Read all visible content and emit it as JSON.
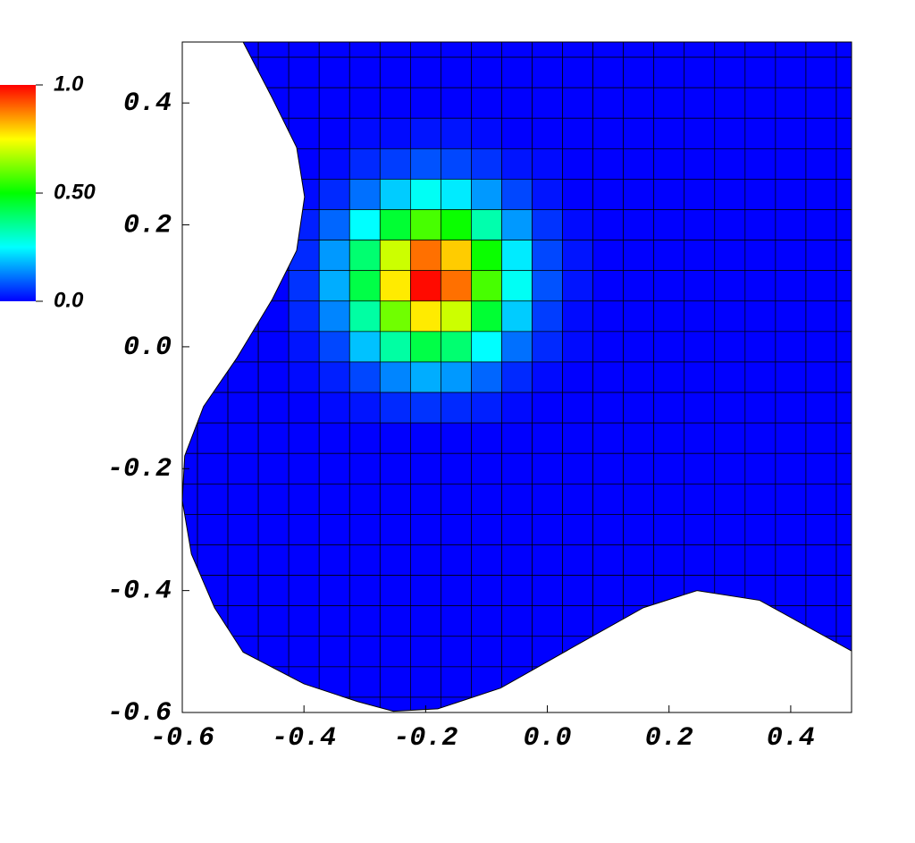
{
  "chart_data": {
    "type": "mesh",
    "x": [
      -0.6,
      -0.55,
      -0.5,
      -0.45,
      -0.4,
      -0.35,
      -0.3,
      -0.25,
      -0.2,
      -0.15,
      -0.1,
      -0.05,
      0,
      0.05,
      0.1,
      0.15,
      0.2,
      0.25,
      0.3,
      0.35,
      0.4,
      0.45,
      0.5
    ],
    "y": [
      0.5,
      0.45,
      0.4,
      0.35,
      0.3,
      0.25,
      0.2,
      0.15,
      0.1,
      0.05,
      0,
      -0.05,
      -0.1,
      -0.15,
      -0.2,
      -0.25,
      -0.3,
      -0.35,
      -0.4,
      -0.45,
      -0.5,
      -0.55,
      -0.6
    ],
    "z": [
      [
        0,
        0,
        0,
        0,
        0,
        0,
        0,
        0,
        0,
        0,
        0,
        0,
        0,
        0,
        0,
        0,
        0,
        0,
        0,
        0,
        0,
        0,
        0
      ],
      [
        0,
        0,
        0,
        0,
        0,
        0,
        0,
        0,
        0,
        0,
        0,
        0,
        0,
        0,
        0,
        0,
        0,
        0,
        0,
        0,
        0,
        0,
        0
      ],
      [
        0,
        0,
        0,
        0,
        0,
        0,
        0,
        0,
        0,
        0,
        0,
        0,
        0,
        0,
        0,
        0,
        0,
        0,
        0,
        0,
        0,
        0,
        0
      ],
      [
        0,
        0,
        0,
        0,
        0,
        0,
        0.01,
        0.01,
        0.02,
        0.02,
        0.01,
        0,
        0,
        0,
        0,
        0,
        0,
        0,
        0,
        0,
        0,
        0,
        0
      ],
      [
        0,
        0,
        0,
        0,
        0,
        0.01,
        0.04,
        0.06,
        0.08,
        0.07,
        0.05,
        0.02,
        0.01,
        0,
        0,
        0,
        0,
        0,
        0,
        0,
        0,
        0,
        0
      ],
      [
        0,
        0,
        0,
        0,
        0.01,
        0.04,
        0.11,
        0.2,
        0.26,
        0.23,
        0.15,
        0.07,
        0.02,
        0,
        0,
        0,
        0,
        0,
        0,
        0,
        0,
        0,
        0
      ],
      [
        0,
        0,
        0,
        0,
        0.03,
        0.1,
        0.25,
        0.45,
        0.57,
        0.51,
        0.33,
        0.15,
        0.05,
        0.01,
        0,
        0,
        0,
        0,
        0,
        0,
        0,
        0,
        0
      ],
      [
        0,
        0,
        0,
        0,
        0.04,
        0.15,
        0.39,
        0.7,
        0.89,
        0.8,
        0.51,
        0.23,
        0.07,
        0.02,
        0,
        0,
        0,
        0,
        0,
        0,
        0,
        0,
        0
      ],
      [
        0,
        0,
        0,
        0,
        0.05,
        0.17,
        0.43,
        0.77,
        0.99,
        0.89,
        0.57,
        0.26,
        0.08,
        0.02,
        0,
        0,
        0,
        0,
        0,
        0,
        0,
        0,
        0
      ],
      [
        0,
        0,
        0,
        0,
        0.04,
        0.13,
        0.34,
        0.61,
        0.77,
        0.7,
        0.45,
        0.2,
        0.06,
        0.01,
        0,
        0,
        0,
        0,
        0,
        0,
        0,
        0,
        0
      ],
      [
        0,
        0,
        0,
        0,
        0.02,
        0.07,
        0.19,
        0.34,
        0.43,
        0.39,
        0.25,
        0.11,
        0.04,
        0.01,
        0,
        0,
        0,
        0,
        0,
        0,
        0,
        0,
        0
      ],
      [
        0,
        0,
        0,
        0,
        0.01,
        0.03,
        0.07,
        0.13,
        0.17,
        0.15,
        0.1,
        0.04,
        0.01,
        0,
        0,
        0,
        0,
        0,
        0,
        0,
        0,
        0,
        0
      ],
      [
        0,
        0,
        0,
        0,
        0,
        0.01,
        0.02,
        0.04,
        0.05,
        0.04,
        0.03,
        0.01,
        0,
        0,
        0,
        0,
        0,
        0,
        0,
        0,
        0,
        0,
        0
      ],
      [
        0,
        0,
        0,
        0,
        0,
        0,
        0,
        0,
        0,
        0,
        0,
        0,
        0,
        0,
        0,
        0,
        0,
        0,
        0,
        0,
        0,
        0,
        0
      ],
      [
        0,
        0,
        0,
        0,
        0,
        0,
        0,
        0,
        0,
        0,
        0,
        0,
        0,
        0,
        0,
        0,
        0,
        0,
        0,
        0,
        0,
        0,
        0
      ],
      [
        0,
        0,
        0,
        0,
        0,
        0,
        0,
        0,
        0,
        0,
        0,
        0,
        0,
        0,
        0,
        0,
        0,
        0,
        0,
        0,
        0,
        0,
        0
      ],
      [
        0,
        0,
        0,
        0,
        0,
        0,
        0,
        0,
        0,
        0,
        0,
        0,
        0,
        0,
        0,
        0,
        0,
        0,
        0,
        0,
        0,
        0,
        0
      ],
      [
        0,
        0,
        0,
        0,
        0,
        0,
        0,
        0,
        0,
        0,
        0,
        0,
        0,
        0,
        0,
        0,
        0,
        0,
        0,
        0,
        0,
        0,
        0
      ],
      [
        0,
        0,
        0,
        0,
        0,
        0,
        0,
        0,
        0,
        0,
        0,
        0,
        0,
        0,
        0,
        0,
        0,
        0,
        0,
        0,
        0,
        0,
        0
      ],
      [
        0,
        0,
        0,
        0,
        0,
        0,
        0,
        0,
        0,
        0,
        0,
        0,
        0,
        0,
        0,
        0,
        0,
        0,
        0,
        0,
        0,
        0,
        0
      ],
      [
        0,
        0,
        0,
        0,
        0,
        0,
        0,
        0,
        0,
        0,
        0,
        0,
        0,
        0,
        0,
        0,
        0,
        0,
        0,
        0,
        0,
        0,
        0
      ],
      [
        0,
        0,
        0,
        0,
        0,
        0,
        0,
        0,
        0,
        0,
        0,
        0,
        0,
        0,
        0,
        0,
        0,
        0,
        0,
        0,
        0,
        0,
        0
      ],
      [
        0,
        0,
        0,
        0,
        0,
        0,
        0,
        0,
        0,
        0,
        0,
        0,
        0,
        0,
        0,
        0,
        0,
        0,
        0,
        0,
        0,
        0,
        0
      ]
    ],
    "zlim": [
      0,
      1
    ],
    "colormap": [
      "#0000ff",
      "#00ffff",
      "#00ff00",
      "#ffff00",
      "#ff0000"
    ],
    "colorbar_ticks": [
      {
        "value": 1,
        "label": "1.0"
      },
      {
        "value": 0.5,
        "label": "0.50"
      },
      {
        "value": 0,
        "label": "0.0"
      }
    ],
    "boundary": {
      "x": [
        -0.5,
        -0.452,
        -0.412,
        -0.399,
        -0.412,
        -0.452,
        -0.51,
        -0.565,
        -0.596,
        -0.6,
        -0.585,
        -0.547,
        -0.5,
        -0.4,
        -0.312,
        -0.253,
        -0.18,
        -0.077,
        0.04,
        0.158,
        0.246,
        0.349,
        0.5,
        0.5
      ],
      "y": [
        0.5,
        0.408,
        0.327,
        0.246,
        0.158,
        0.078,
        -0.018,
        -0.098,
        -0.179,
        -0.252,
        -0.34,
        -0.428,
        -0.501,
        -0.553,
        -0.582,
        -0.598,
        -0.594,
        -0.56,
        -0.494,
        -0.428,
        -0.4,
        -0.416,
        -0.499,
        0.5
      ]
    },
    "xlim": [
      -0.6,
      0.5
    ],
    "ylim": [
      -0.6,
      0.5
    ],
    "xticks": [
      -0.6,
      -0.4,
      -0.2,
      {
        "value": 0,
        "label": "0.0"
      },
      0.2,
      0.4
    ],
    "yticks": [
      {
        "value": -0.6,
        "label": "-0.6"
      },
      -0.4,
      -0.2,
      {
        "value": 0,
        "label": "0.0"
      },
      0.2,
      0.4
    ]
  }
}
